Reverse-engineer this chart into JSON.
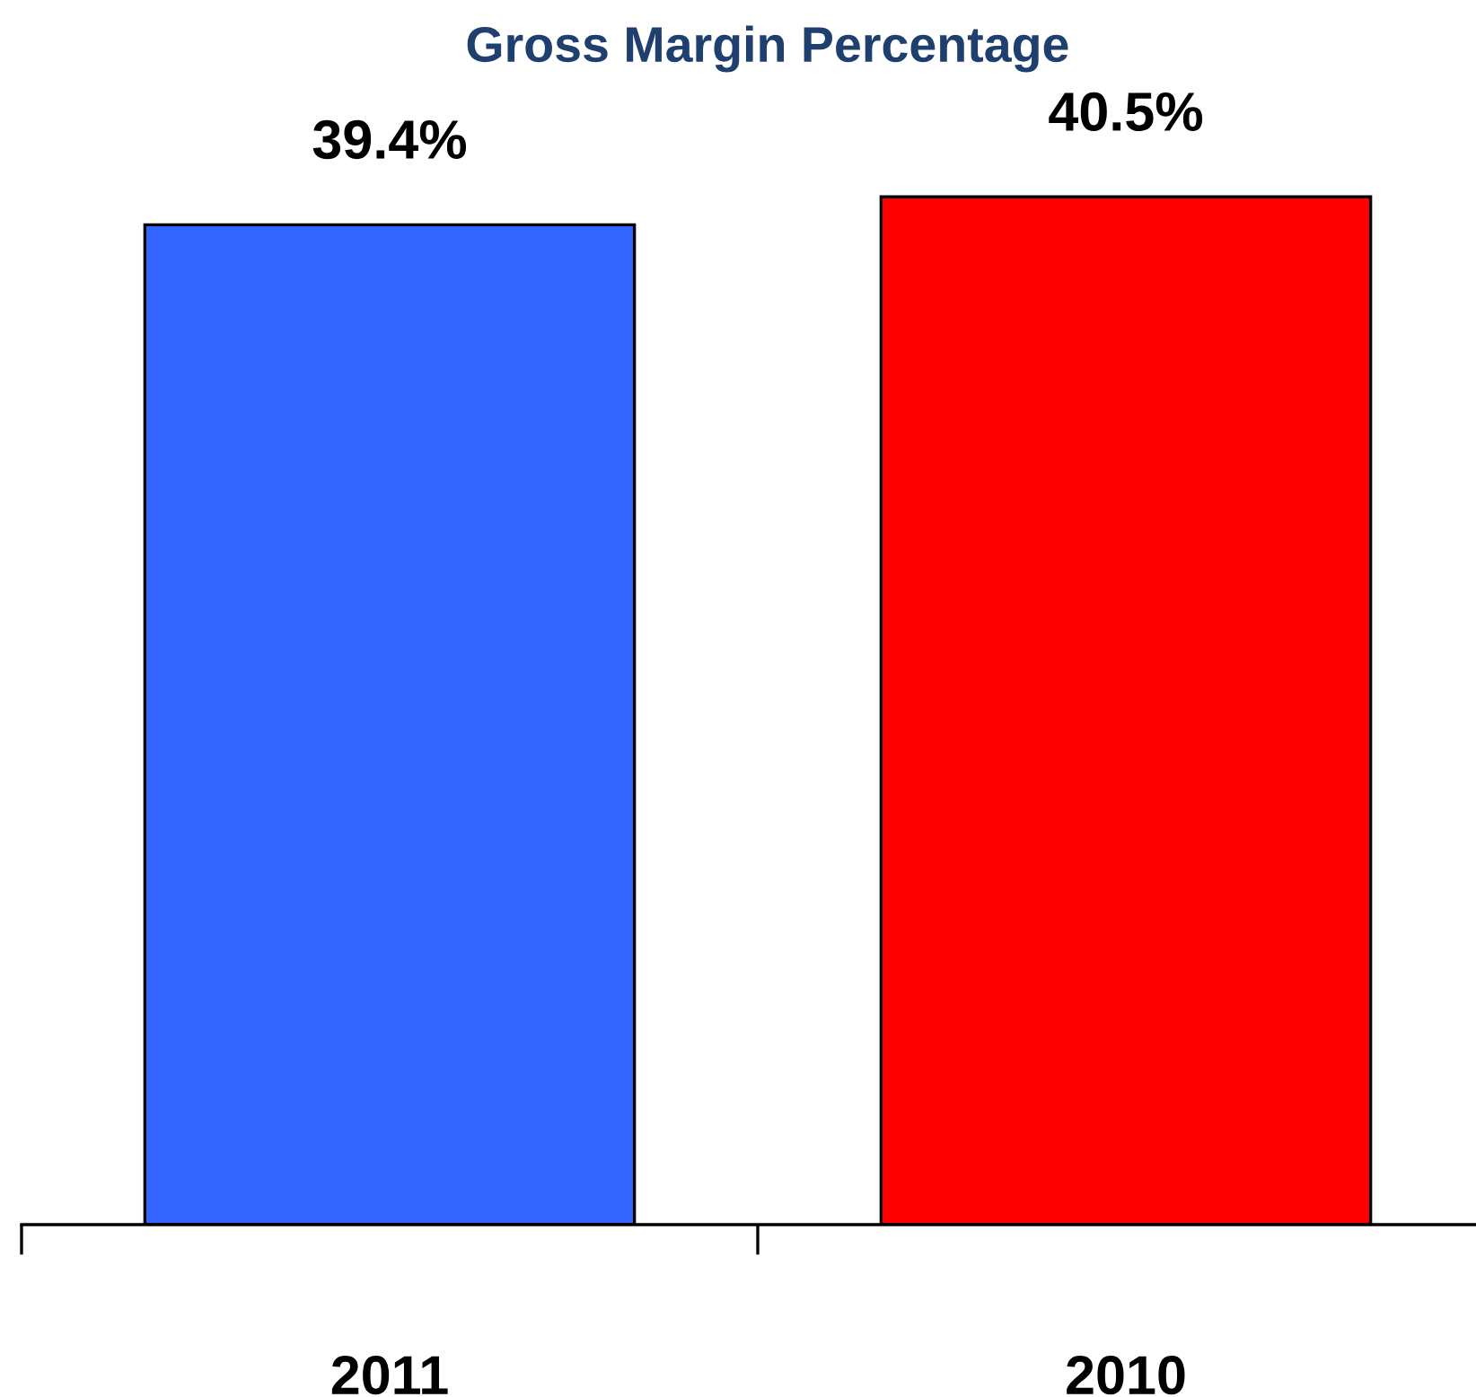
{
  "chart_data": {
    "type": "bar",
    "title": "Gross Margin Percentage",
    "categories": [
      "2011",
      "2010"
    ],
    "values": [
      39.4,
      40.5
    ],
    "colors": [
      "#3366ff",
      "#ff0000"
    ],
    "value_labels": [
      "39.4%",
      "40.5%"
    ],
    "grid": false,
    "legend": false,
    "tick_labels": "x"
  }
}
